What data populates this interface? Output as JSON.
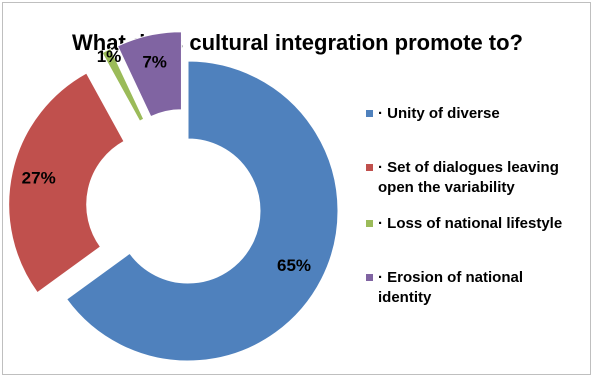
{
  "chart_data": {
    "type": "pie",
    "title": "What does cultural integration promote to?",
    "categories": [
      "· Unity of diverse",
      "· Set of dialogues leaving open the variability",
      "· Loss of national lifestyle",
      "· Erosion of national identity"
    ],
    "values": [
      65,
      27,
      1,
      7
    ],
    "labels": [
      "65%",
      "27%",
      "1%",
      "7%"
    ],
    "colors": [
      "#4F81BD",
      "#C0504D",
      "#9BBB59",
      "#8064A2"
    ],
    "style": "exploded-doughnut",
    "legend": "right"
  }
}
